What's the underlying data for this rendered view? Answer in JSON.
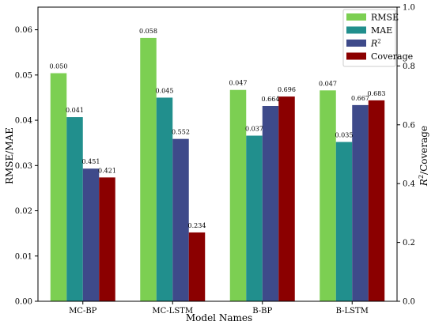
{
  "chart_data": {
    "type": "bar",
    "categories": [
      "MC-BP",
      "MC-LSTM",
      "B-BP",
      "B-LSTM"
    ],
    "xlabel": "Model Names",
    "ylabel_left": "RMSE/MAE",
    "ylabel_right_symbol": "R",
    "ylabel_right_sup": "2",
    "ylabel_right_suffix": "/Coverage",
    "ylim_left": [
      0,
      0.065
    ],
    "ylim_right": [
      0,
      1.0
    ],
    "yticks_left": [
      "0.00",
      "0.01",
      "0.02",
      "0.03",
      "0.04",
      "0.05",
      "0.06"
    ],
    "yticks_right": [
      "0.0",
      "0.2",
      "0.4",
      "0.6",
      "0.8",
      "1.0"
    ],
    "grid": false,
    "legend_position": "top-right",
    "series": [
      {
        "name": "RMSE",
        "axis": "left",
        "color": "#7ccf52",
        "values": [
          0.0504,
          0.0582,
          0.0467,
          0.0466
        ],
        "labels": [
          "0.050",
          "0.058",
          "0.047",
          "0.047"
        ]
      },
      {
        "name": "MAE",
        "axis": "left",
        "color": "#218f8d",
        "values": [
          0.0407,
          0.045,
          0.0366,
          0.0352
        ],
        "labels": [
          "0.041",
          "0.045",
          "0.037",
          "0.035"
        ]
      },
      {
        "name": "R",
        "name_sup": "2",
        "italic": true,
        "axis": "right",
        "color": "#3e4a8a",
        "values": [
          0.451,
          0.552,
          0.664,
          0.667
        ],
        "labels": [
          "0.451",
          "0.552",
          "0.664",
          "0.667"
        ]
      },
      {
        "name": "Coverage",
        "axis": "right",
        "color": "#8b0000",
        "values": [
          0.421,
          0.234,
          0.696,
          0.683
        ],
        "labels": [
          "0.421",
          "0.234",
          "0.696",
          "0.683"
        ]
      }
    ]
  }
}
